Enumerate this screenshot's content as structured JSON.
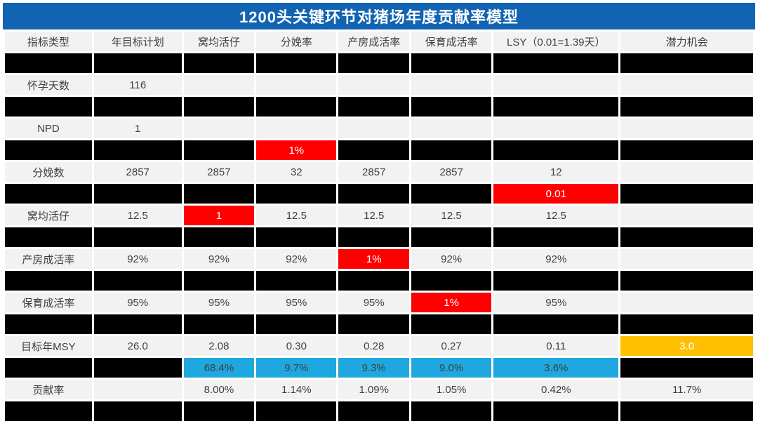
{
  "title": "1200头关键环节对猪场年度贡献率模型",
  "colors": {
    "title_bg": "#1263B2",
    "title_text": "#FFFFFF",
    "cell_light_bg": "#F2F2F2",
    "cell_text": "#3F3F3F",
    "cell_black_bg": "#000000",
    "cell_red_bg": "#FF0000",
    "cell_orange_bg": "#FFC000",
    "cell_blue_bg": "#1FA8E0",
    "cell_invert_text": "#FFFFFF"
  },
  "table": {
    "columns": [
      {
        "name": "indicator-type",
        "label": "指标类型"
      },
      {
        "name": "annual-target-plan",
        "label": "年目标计划"
      },
      {
        "name": "born-alive-per-litter",
        "label": "窝均活仔"
      },
      {
        "name": "farrowing-rate",
        "label": "分娩率"
      },
      {
        "name": "farrowing-house-survival",
        "label": "产房成活率"
      },
      {
        "name": "nursery-survival",
        "label": "保育成活率"
      },
      {
        "name": "lsy",
        "label": "LSY（0.01=1.39天）"
      },
      {
        "name": "potential-opportunity",
        "label": "潜力机会"
      }
    ],
    "col_widths_pct": [
      11.85,
      11.94,
      9.63,
      10.93,
      9.63,
      10.93,
      17.04,
      18.05
    ],
    "rows": [
      {
        "name": "masked-row-1",
        "cells": [
          {
            "t": "",
            "s": "black"
          },
          {
            "t": "",
            "s": "black"
          },
          {
            "t": "",
            "s": "black"
          },
          {
            "t": "",
            "s": "black"
          },
          {
            "t": "",
            "s": "black"
          },
          {
            "t": "",
            "s": "black"
          },
          {
            "t": "",
            "s": "black"
          },
          {
            "t": "",
            "s": "black"
          }
        ]
      },
      {
        "name": "row-pregnancy-days",
        "cells": [
          {
            "t": "怀孕天数",
            "s": "light"
          },
          {
            "t": "116",
            "s": "light"
          },
          {
            "t": "",
            "s": "light"
          },
          {
            "t": "",
            "s": "light"
          },
          {
            "t": "",
            "s": "light"
          },
          {
            "t": "",
            "s": "light"
          },
          {
            "t": "",
            "s": "light"
          },
          {
            "t": "",
            "s": "light"
          }
        ]
      },
      {
        "name": "masked-row-2",
        "cells": [
          {
            "t": "",
            "s": "black"
          },
          {
            "t": "",
            "s": "black"
          },
          {
            "t": "",
            "s": "black"
          },
          {
            "t": "",
            "s": "black"
          },
          {
            "t": "",
            "s": "black"
          },
          {
            "t": "",
            "s": "black"
          },
          {
            "t": "",
            "s": "black"
          },
          {
            "t": "",
            "s": "black"
          }
        ]
      },
      {
        "name": "row-npd",
        "cells": [
          {
            "t": "NPD",
            "s": "light"
          },
          {
            "t": "1",
            "s": "light"
          },
          {
            "t": "",
            "s": "light"
          },
          {
            "t": "",
            "s": "light"
          },
          {
            "t": "",
            "s": "light"
          },
          {
            "t": "",
            "s": "light"
          },
          {
            "t": "",
            "s": "light"
          },
          {
            "t": "",
            "s": "light"
          }
        ]
      },
      {
        "name": "masked-row-3-farrowing-rate-delta",
        "cells": [
          {
            "t": "",
            "s": "black"
          },
          {
            "t": "",
            "s": "black"
          },
          {
            "t": "",
            "s": "black"
          },
          {
            "t": "1%",
            "s": "red"
          },
          {
            "t": "",
            "s": "black"
          },
          {
            "t": "",
            "s": "black"
          },
          {
            "t": "",
            "s": "black"
          },
          {
            "t": "",
            "s": "black"
          }
        ]
      },
      {
        "name": "row-farrowings",
        "cells": [
          {
            "t": "分娩数",
            "s": "light"
          },
          {
            "t": "2857",
            "s": "light"
          },
          {
            "t": "2857",
            "s": "light"
          },
          {
            "t": "32",
            "s": "light"
          },
          {
            "t": "2857",
            "s": "light"
          },
          {
            "t": "2857",
            "s": "light"
          },
          {
            "t": "12",
            "s": "light"
          },
          {
            "t": "",
            "s": "light"
          }
        ]
      },
      {
        "name": "masked-row-4-lsy-delta",
        "cells": [
          {
            "t": "",
            "s": "black"
          },
          {
            "t": "",
            "s": "black"
          },
          {
            "t": "",
            "s": "black"
          },
          {
            "t": "",
            "s": "black"
          },
          {
            "t": "",
            "s": "black"
          },
          {
            "t": "",
            "s": "black"
          },
          {
            "t": "0.01",
            "s": "red"
          },
          {
            "t": "",
            "s": "black"
          }
        ]
      },
      {
        "name": "row-born-alive-per-litter",
        "cells": [
          {
            "t": "窝均活仔",
            "s": "light"
          },
          {
            "t": "12.5",
            "s": "light"
          },
          {
            "t": "1",
            "s": "red"
          },
          {
            "t": "12.5",
            "s": "light"
          },
          {
            "t": "12.5",
            "s": "light"
          },
          {
            "t": "12.5",
            "s": "light"
          },
          {
            "t": "12.5",
            "s": "light"
          },
          {
            "t": "",
            "s": "light"
          }
        ]
      },
      {
        "name": "masked-row-5",
        "cells": [
          {
            "t": "",
            "s": "black"
          },
          {
            "t": "",
            "s": "black"
          },
          {
            "t": "",
            "s": "black"
          },
          {
            "t": "",
            "s": "black"
          },
          {
            "t": "",
            "s": "black"
          },
          {
            "t": "",
            "s": "black"
          },
          {
            "t": "",
            "s": "black"
          },
          {
            "t": "",
            "s": "black"
          }
        ]
      },
      {
        "name": "row-farrowing-house-survival",
        "cells": [
          {
            "t": "产房成活率",
            "s": "light"
          },
          {
            "t": "92%",
            "s": "light"
          },
          {
            "t": "92%",
            "s": "light"
          },
          {
            "t": "92%",
            "s": "light"
          },
          {
            "t": "1%",
            "s": "red"
          },
          {
            "t": "92%",
            "s": "light"
          },
          {
            "t": "92%",
            "s": "light"
          },
          {
            "t": "",
            "s": "light"
          }
        ]
      },
      {
        "name": "masked-row-6",
        "cells": [
          {
            "t": "",
            "s": "black"
          },
          {
            "t": "",
            "s": "black"
          },
          {
            "t": "",
            "s": "black"
          },
          {
            "t": "",
            "s": "black"
          },
          {
            "t": "",
            "s": "black"
          },
          {
            "t": "",
            "s": "black"
          },
          {
            "t": "",
            "s": "black"
          },
          {
            "t": "",
            "s": "black"
          }
        ]
      },
      {
        "name": "row-nursery-survival",
        "cells": [
          {
            "t": "保育成活率",
            "s": "light"
          },
          {
            "t": "95%",
            "s": "light"
          },
          {
            "t": "95%",
            "s": "light"
          },
          {
            "t": "95%",
            "s": "light"
          },
          {
            "t": "95%",
            "s": "light"
          },
          {
            "t": "1%",
            "s": "red"
          },
          {
            "t": "95%",
            "s": "light"
          },
          {
            "t": "",
            "s": "light"
          }
        ]
      },
      {
        "name": "masked-row-7",
        "cells": [
          {
            "t": "",
            "s": "black"
          },
          {
            "t": "",
            "s": "black"
          },
          {
            "t": "",
            "s": "black"
          },
          {
            "t": "",
            "s": "black"
          },
          {
            "t": "",
            "s": "black"
          },
          {
            "t": "",
            "s": "black"
          },
          {
            "t": "",
            "s": "black"
          },
          {
            "t": "",
            "s": "black"
          }
        ]
      },
      {
        "name": "row-target-msy",
        "cells": [
          {
            "t": "目标年MSY",
            "s": "light"
          },
          {
            "t": "26.0",
            "s": "light"
          },
          {
            "t": "2.08",
            "s": "light"
          },
          {
            "t": "0.30",
            "s": "light"
          },
          {
            "t": "0.28",
            "s": "light"
          },
          {
            "t": "0.27",
            "s": "light"
          },
          {
            "t": "0.11",
            "s": "light"
          },
          {
            "t": "3.0",
            "s": "orange"
          }
        ]
      },
      {
        "name": "row-impact-share",
        "cells": [
          {
            "t": "",
            "s": "black"
          },
          {
            "t": "",
            "s": "black"
          },
          {
            "t": "68.4%",
            "s": "blue"
          },
          {
            "t": "9.7%",
            "s": "blue"
          },
          {
            "t": "9.3%",
            "s": "blue"
          },
          {
            "t": "9.0%",
            "s": "blue"
          },
          {
            "t": "3.6%",
            "s": "blue"
          },
          {
            "t": "",
            "s": "black"
          }
        ]
      },
      {
        "name": "row-contribution-rate",
        "cells": [
          {
            "t": "贡献率",
            "s": "light"
          },
          {
            "t": "",
            "s": "light"
          },
          {
            "t": "8.00%",
            "s": "light"
          },
          {
            "t": "1.14%",
            "s": "light"
          },
          {
            "t": "1.09%",
            "s": "light"
          },
          {
            "t": "1.05%",
            "s": "light"
          },
          {
            "t": "0.42%",
            "s": "light"
          },
          {
            "t": "11.7%",
            "s": "light"
          }
        ]
      },
      {
        "name": "masked-row-8",
        "cells": [
          {
            "t": "",
            "s": "black"
          },
          {
            "t": "",
            "s": "black"
          },
          {
            "t": "",
            "s": "black"
          },
          {
            "t": "",
            "s": "black"
          },
          {
            "t": "",
            "s": "black"
          },
          {
            "t": "",
            "s": "black"
          },
          {
            "t": "",
            "s": "black"
          },
          {
            "t": "",
            "s": "black"
          }
        ]
      }
    ]
  }
}
